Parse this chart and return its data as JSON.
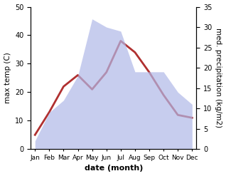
{
  "months": [
    "Jan",
    "Feb",
    "Mar",
    "Apr",
    "May",
    "Jun",
    "Jul",
    "Aug",
    "Sep",
    "Oct",
    "Nov",
    "Dec"
  ],
  "temperature": [
    5,
    13,
    22,
    26,
    21,
    27,
    38,
    34,
    27,
    19,
    12,
    11
  ],
  "precipitation": [
    2,
    9,
    12,
    18,
    32,
    30,
    29,
    19,
    19,
    19,
    14,
    11
  ],
  "temp_color": "#b03030",
  "precip_fill_color": "#b0b8e8",
  "precip_fill_alpha": 0.7,
  "ylabel_left": "max temp (C)",
  "ylabel_right": "med. precipitation (kg/m2)",
  "xlabel": "date (month)",
  "ylim_left": [
    0,
    50
  ],
  "ylim_right": [
    0,
    35
  ],
  "yticks_left": [
    0,
    10,
    20,
    30,
    40,
    50
  ],
  "yticks_right": [
    0,
    5,
    10,
    15,
    20,
    25,
    30,
    35
  ],
  "temp_linewidth": 2.0,
  "tick_fontsize": 7,
  "xlabel_fontsize": 8,
  "ylabel_fontsize": 7.5
}
